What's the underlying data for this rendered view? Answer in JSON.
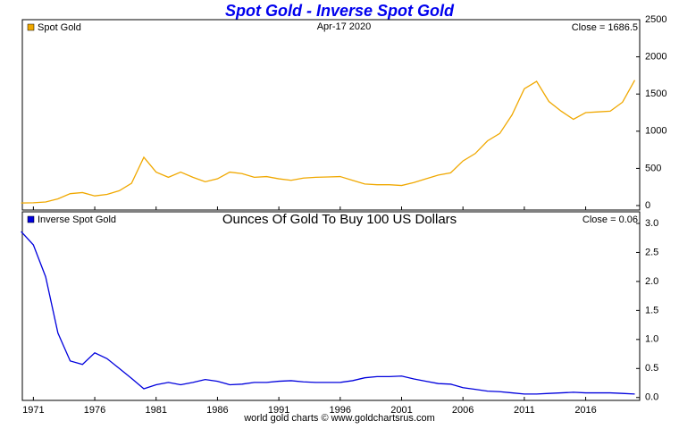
{
  "title": "Spot Gold - Inverse Spot Gold",
  "footer": "world gold charts © www.goldchartsrus.com",
  "chart_data": [
    {
      "type": "line",
      "date": "Apr-17  2020",
      "close_label": "Close = 1686.5",
      "x": [
        1970,
        1971,
        1972,
        1973,
        1974,
        1975,
        1976,
        1977,
        1978,
        1979,
        1980,
        1981,
        1982,
        1983,
        1984,
        1985,
        1986,
        1987,
        1988,
        1989,
        1990,
        1991,
        1992,
        1993,
        1994,
        1995,
        1996,
        1997,
        1998,
        1999,
        2000,
        2001,
        2002,
        2003,
        2004,
        2005,
        2006,
        2007,
        2008,
        2009,
        2010,
        2011,
        2012,
        2013,
        2014,
        2015,
        2016,
        2017,
        2018,
        2019,
        2020
      ],
      "series": [
        {
          "name": "Spot Gold",
          "color": "#f0a800",
          "values": [
            35,
            38,
            48,
            90,
            160,
            175,
            130,
            150,
            200,
            300,
            650,
            450,
            380,
            450,
            380,
            320,
            360,
            450,
            430,
            380,
            390,
            360,
            340,
            370,
            380,
            385,
            390,
            340,
            290,
            280,
            280,
            270,
            310,
            360,
            410,
            440,
            600,
            700,
            870,
            970,
            1220,
            1570,
            1670,
            1400,
            1270,
            1160,
            1250,
            1260,
            1270,
            1390,
            1686.5
          ]
        }
      ],
      "xlim": [
        1970.1,
        2020.4
      ],
      "ylim": [
        -60,
        2500
      ],
      "yticks": [
        0,
        500,
        1000,
        1500,
        2000,
        2500
      ]
    },
    {
      "type": "line",
      "subtitle": "Ounces Of Gold To Buy 100 US Dollars",
      "close_label": "Close = 0.06",
      "x": [
        1970,
        1971,
        1972,
        1973,
        1974,
        1975,
        1976,
        1977,
        1978,
        1979,
        1980,
        1981,
        1982,
        1983,
        1984,
        1985,
        1986,
        1987,
        1988,
        1989,
        1990,
        1991,
        1992,
        1993,
        1994,
        1995,
        1996,
        1997,
        1998,
        1999,
        2000,
        2001,
        2002,
        2003,
        2004,
        2005,
        2006,
        2007,
        2008,
        2009,
        2010,
        2011,
        2012,
        2013,
        2014,
        2015,
        2016,
        2017,
        2018,
        2019,
        2020
      ],
      "series": [
        {
          "name": "Inverse Spot Gold",
          "color": "#0000dd",
          "values": [
            2.86,
            2.63,
            2.08,
            1.11,
            0.63,
            0.57,
            0.77,
            0.67,
            0.5,
            0.33,
            0.15,
            0.22,
            0.26,
            0.22,
            0.26,
            0.31,
            0.28,
            0.22,
            0.23,
            0.26,
            0.26,
            0.28,
            0.29,
            0.27,
            0.26,
            0.26,
            0.26,
            0.29,
            0.34,
            0.36,
            0.36,
            0.37,
            0.32,
            0.28,
            0.24,
            0.23,
            0.17,
            0.14,
            0.11,
            0.1,
            0.08,
            0.06,
            0.06,
            0.07,
            0.08,
            0.09,
            0.08,
            0.08,
            0.08,
            0.07,
            0.06
          ]
        }
      ],
      "xlim": [
        1970.1,
        2020.4
      ],
      "ylim": [
        -0.05,
        3.2
      ],
      "yticks": [
        {
          "value": 0,
          "label": "0.0"
        },
        {
          "value": 0.5,
          "label": "0.5"
        },
        {
          "value": 1,
          "label": "1.0"
        },
        {
          "value": 1.5,
          "label": "1.5"
        },
        {
          "value": 2,
          "label": "2.0"
        },
        {
          "value": 2.5,
          "label": "2.5"
        },
        {
          "value": 3,
          "label": "3.0"
        }
      ],
      "xticks": [
        1971,
        1976,
        1981,
        1986,
        1991,
        1996,
        2001,
        2006,
        2011,
        2016
      ]
    }
  ]
}
